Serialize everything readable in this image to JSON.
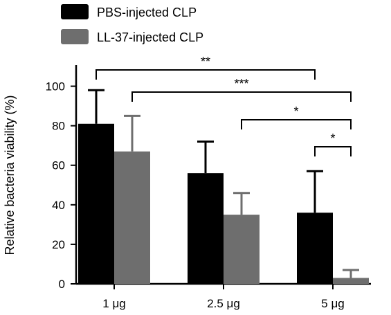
{
  "chart_data": {
    "type": "bar",
    "xlabel": "",
    "ylabel": "Relative bacteria viability (%)",
    "ylim": [
      0,
      110
    ],
    "yticks": [
      0,
      20,
      40,
      60,
      80,
      100
    ],
    "categories": [
      "1 μg",
      "2.5 μg",
      "5 μg"
    ],
    "series": [
      {
        "name": "PBS-injected CLP",
        "values": [
          81,
          56,
          36
        ],
        "errors": [
          17,
          16,
          21
        ],
        "color": "#000000"
      },
      {
        "name": "LL-37-injected CLP",
        "values": [
          67,
          35,
          3
        ],
        "errors": [
          18,
          11,
          4
        ],
        "color": "#6e6e6e"
      }
    ],
    "legend_position": "top-left",
    "grid": false,
    "significance": [
      {
        "label": "**",
        "from": {
          "series": 0,
          "category": 0
        },
        "to": {
          "series": 0,
          "category": 2
        }
      },
      {
        "label": "***",
        "from": {
          "series": 1,
          "category": 0
        },
        "to": {
          "series": 1,
          "category": 2
        }
      },
      {
        "label": "*",
        "from": {
          "series": 1,
          "category": 1
        },
        "to": {
          "series": 1,
          "category": 2
        }
      },
      {
        "label": "*",
        "from": {
          "series": 0,
          "category": 2
        },
        "to": {
          "series": 1,
          "category": 2
        }
      }
    ]
  }
}
